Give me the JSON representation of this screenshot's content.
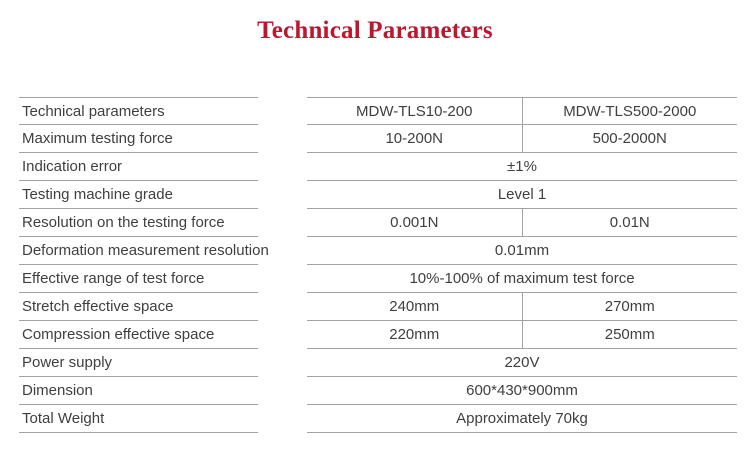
{
  "page": {
    "title": "Technical Parameters"
  },
  "colors": {
    "accent": "#c0152f",
    "line": "#a3a3a3",
    "text": "#3f3f3f"
  },
  "table": {
    "rows": [
      {
        "label": "Technical parameters",
        "values": [
          "MDW-TLS10-200",
          "MDW-TLS500-2000"
        ]
      },
      {
        "label": "Maximum testing force",
        "values": [
          "10-200N",
          "500-2000N"
        ]
      },
      {
        "label": "Indication error",
        "values": [
          "±1%"
        ]
      },
      {
        "label": "Testing machine grade",
        "values": [
          "Level 1"
        ]
      },
      {
        "label": "Resolution on the testing force",
        "values": [
          "0.001N",
          "0.01N"
        ]
      },
      {
        "label": "Deformation measurement resolution",
        "values": [
          "0.01mm"
        ]
      },
      {
        "label": "Effective range of test force",
        "values": [
          "10%-100% of maximum test force"
        ]
      },
      {
        "label": "Stretch effective space",
        "values": [
          "240mm",
          "270mm"
        ]
      },
      {
        "label": "Compression effective space",
        "values": [
          "220mm",
          "250mm"
        ]
      },
      {
        "label": "Power supply",
        "values": [
          "220V"
        ]
      },
      {
        "label": "Dimension",
        "values": [
          "600*430*900mm"
        ]
      },
      {
        "label": "Total Weight",
        "values": [
          "Approximately 70kg"
        ]
      }
    ]
  }
}
